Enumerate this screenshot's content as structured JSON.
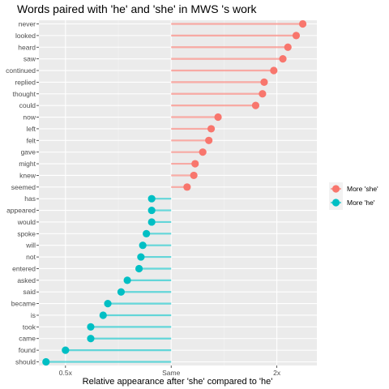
{
  "chart_data": {
    "type": "lollipop",
    "title": "Words paired with 'he' and 'she' in  MWS 's work",
    "xlabel": "Relative appearance after 'she' compared to 'he'",
    "ylabel": "",
    "x_scale": "log2",
    "xlim": [
      0.42,
      2.6
    ],
    "x_ticks": [
      {
        "value": 0.5,
        "label": "0.5x"
      },
      {
        "value": 1,
        "label": "Same"
      },
      {
        "value": 2,
        "label": "2x"
      }
    ],
    "grid": true,
    "legend_position": "right",
    "series": [
      {
        "name": "More 'she'",
        "color": "#F8766D"
      },
      {
        "name": "More 'he'",
        "color": "#00BFC4"
      }
    ],
    "points": [
      {
        "word": "never",
        "ratio": 2.37,
        "group": "More 'she'"
      },
      {
        "word": "looked",
        "ratio": 2.27,
        "group": "More 'she'"
      },
      {
        "word": "heard",
        "ratio": 2.15,
        "group": "More 'she'"
      },
      {
        "word": "saw",
        "ratio": 2.08,
        "group": "More 'she'"
      },
      {
        "word": "continued",
        "ratio": 1.96,
        "group": "More 'she'"
      },
      {
        "word": "replied",
        "ratio": 1.84,
        "group": "More 'she'"
      },
      {
        "word": "thought",
        "ratio": 1.82,
        "group": "More 'she'"
      },
      {
        "word": "could",
        "ratio": 1.74,
        "group": "More 'she'"
      },
      {
        "word": "now",
        "ratio": 1.36,
        "group": "More 'she'"
      },
      {
        "word": "left",
        "ratio": 1.3,
        "group": "More 'she'"
      },
      {
        "word": "felt",
        "ratio": 1.28,
        "group": "More 'she'"
      },
      {
        "word": "gave",
        "ratio": 1.23,
        "group": "More 'she'"
      },
      {
        "word": "might",
        "ratio": 1.17,
        "group": "More 'she'"
      },
      {
        "word": "knew",
        "ratio": 1.16,
        "group": "More 'she'"
      },
      {
        "word": "seemed",
        "ratio": 1.11,
        "group": "More 'she'"
      },
      {
        "word": "has",
        "ratio": 0.88,
        "group": "More 'he'"
      },
      {
        "word": "appeared",
        "ratio": 0.88,
        "group": "More 'he'"
      },
      {
        "word": "would",
        "ratio": 0.88,
        "group": "More 'he'"
      },
      {
        "word": "spoke",
        "ratio": 0.85,
        "group": "More 'he'"
      },
      {
        "word": "will",
        "ratio": 0.83,
        "group": "More 'he'"
      },
      {
        "word": "not",
        "ratio": 0.82,
        "group": "More 'he'"
      },
      {
        "word": "entered",
        "ratio": 0.81,
        "group": "More 'he'"
      },
      {
        "word": "asked",
        "ratio": 0.75,
        "group": "More 'he'"
      },
      {
        "word": "said",
        "ratio": 0.72,
        "group": "More 'he'"
      },
      {
        "word": "became",
        "ratio": 0.66,
        "group": "More 'he'"
      },
      {
        "word": "is",
        "ratio": 0.64,
        "group": "More 'he'"
      },
      {
        "word": "took",
        "ratio": 0.59,
        "group": "More 'he'"
      },
      {
        "word": "came",
        "ratio": 0.59,
        "group": "More 'he'"
      },
      {
        "word": "found",
        "ratio": 0.5,
        "group": "More 'he'"
      },
      {
        "word": "should",
        "ratio": 0.44,
        "group": "More 'he'"
      }
    ]
  }
}
